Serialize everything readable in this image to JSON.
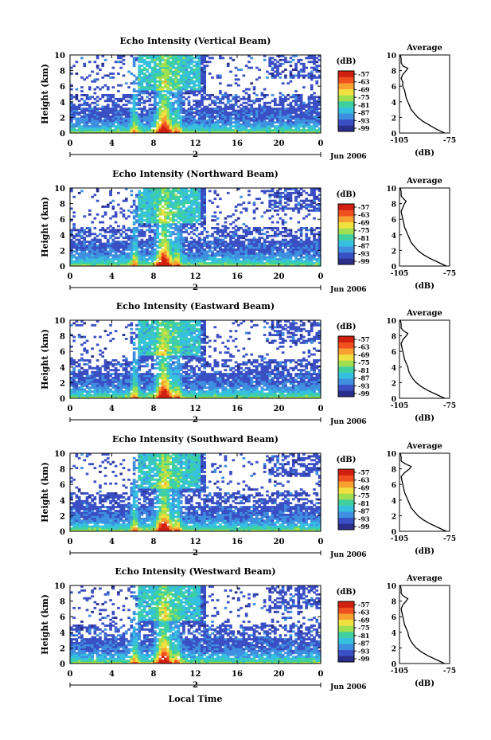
{
  "chart_data": [
    {
      "type": "heatmap",
      "title": "Echo Intensity (Vertical Beam)",
      "ylabel": "Height (km)",
      "xlim": [
        0,
        24
      ],
      "ylim": [
        0,
        10
      ],
      "x_ticks": [
        "0",
        "4",
        "8",
        "12",
        "16",
        "20",
        "0"
      ],
      "y_ticks": [
        "0",
        "2",
        "4",
        "6",
        "8",
        "10"
      ],
      "date_marker": "2",
      "date_label": "Jun 2006",
      "colorbar": {
        "label": "(dB)",
        "ticks": [
          "-57",
          "-63",
          "-69",
          "-75",
          "-81",
          "-87",
          "-93",
          "-99"
        ]
      },
      "profile": {
        "title": "Average",
        "xlabel": "(dB)",
        "xlim": [
          -105,
          -75
        ],
        "x_ticks": [
          "-105",
          "-75"
        ],
        "y_ticks": [
          "0",
          "2",
          "4",
          "6",
          "8",
          "10"
        ],
        "values": [
          [
            -78,
            0
          ],
          [
            -83,
            0.5
          ],
          [
            -87,
            1
          ],
          [
            -91,
            1.5
          ],
          [
            -94,
            2
          ],
          [
            -96,
            2.5
          ],
          [
            -98,
            3
          ],
          [
            -99,
            3.5
          ],
          [
            -100,
            4
          ],
          [
            -101,
            4.5
          ],
          [
            -101.5,
            5
          ],
          [
            -102,
            5.5
          ],
          [
            -103,
            6
          ],
          [
            -103,
            6.5
          ],
          [
            -104,
            7
          ],
          [
            -103,
            7.5
          ],
          [
            -101,
            8
          ],
          [
            -100,
            8.3
          ],
          [
            -103,
            8.6
          ],
          [
            -104,
            9
          ],
          [
            -104,
            9.5
          ],
          [
            -104.5,
            10
          ]
        ]
      }
    },
    {
      "type": "heatmap",
      "title": "Echo Intensity (Northward Beam)",
      "ylabel": "Height (km)",
      "xlim": [
        0,
        24
      ],
      "ylim": [
        0,
        10
      ],
      "x_ticks": [
        "0",
        "4",
        "8",
        "12",
        "16",
        "20",
        "0"
      ],
      "y_ticks": [
        "0",
        "2",
        "4",
        "6",
        "8",
        "10"
      ],
      "date_marker": "2",
      "date_label": "Jun 2006",
      "colorbar": {
        "label": "(dB)",
        "ticks": [
          "-57",
          "-63",
          "-69",
          "-75",
          "-81",
          "-87",
          "-93",
          "-99"
        ]
      },
      "profile": {
        "title": "Average",
        "xlabel": "(dB)",
        "xlim": [
          -105,
          -75
        ],
        "x_ticks": [
          "-105",
          "-75"
        ],
        "y_ticks": [
          "0",
          "2",
          "4",
          "6",
          "8",
          "10"
        ],
        "values": [
          [
            -77,
            0
          ],
          [
            -82,
            0.5
          ],
          [
            -87,
            1
          ],
          [
            -91,
            1.5
          ],
          [
            -94,
            2
          ],
          [
            -96,
            2.5
          ],
          [
            -98,
            3
          ],
          [
            -99,
            3.5
          ],
          [
            -100,
            4
          ],
          [
            -101,
            4.5
          ],
          [
            -102,
            5
          ],
          [
            -102.5,
            5.5
          ],
          [
            -103,
            6
          ],
          [
            -103.5,
            6.5
          ],
          [
            -104,
            7
          ],
          [
            -103,
            7.5
          ],
          [
            -102,
            8
          ],
          [
            -101,
            8.3
          ],
          [
            -103,
            8.7
          ],
          [
            -104,
            9
          ],
          [
            -104,
            9.5
          ],
          [
            -104.5,
            10
          ]
        ]
      }
    },
    {
      "type": "heatmap",
      "title": "Echo Intensity (Eastward Beam)",
      "ylabel": "Height (km)",
      "xlim": [
        0,
        24
      ],
      "ylim": [
        0,
        10
      ],
      "x_ticks": [
        "0",
        "4",
        "8",
        "12",
        "16",
        "20",
        "0"
      ],
      "y_ticks": [
        "0",
        "2",
        "4",
        "6",
        "8",
        "10"
      ],
      "date_marker": "2",
      "date_label": "Jun 2006",
      "colorbar": {
        "label": "(dB)",
        "ticks": [
          "-57",
          "-63",
          "-69",
          "-75",
          "-81",
          "-87",
          "-93",
          "-99"
        ]
      },
      "profile": {
        "title": "Average",
        "xlabel": "(dB)",
        "xlim": [
          -105,
          -75
        ],
        "x_ticks": [
          "-105",
          "-75"
        ],
        "y_ticks": [
          "0",
          "2",
          "4",
          "6",
          "8",
          "10"
        ],
        "values": [
          [
            -78,
            0
          ],
          [
            -83,
            0.5
          ],
          [
            -88,
            1
          ],
          [
            -92,
            1.5
          ],
          [
            -95,
            2
          ],
          [
            -97,
            2.5
          ],
          [
            -98.5,
            3
          ],
          [
            -99.5,
            3.5
          ],
          [
            -100,
            4
          ],
          [
            -101,
            4.5
          ],
          [
            -102,
            5
          ],
          [
            -102.5,
            5.5
          ],
          [
            -103,
            6
          ],
          [
            -103.5,
            6.5
          ],
          [
            -104,
            7
          ],
          [
            -103,
            7.5
          ],
          [
            -101,
            8
          ],
          [
            -100,
            8.3
          ],
          [
            -103,
            8.7
          ],
          [
            -104,
            9
          ],
          [
            -104,
            9.5
          ],
          [
            -104.5,
            10
          ]
        ]
      }
    },
    {
      "type": "heatmap",
      "title": "Echo Intensity (Southward Beam)",
      "ylabel": "Height (km)",
      "xlim": [
        0,
        24
      ],
      "ylim": [
        0,
        10
      ],
      "x_ticks": [
        "0",
        "4",
        "8",
        "12",
        "16",
        "20",
        "0"
      ],
      "y_ticks": [
        "0",
        "2",
        "4",
        "6",
        "8",
        "10"
      ],
      "date_marker": "2",
      "date_label": "Jun 2006",
      "colorbar": {
        "label": "(dB)",
        "ticks": [
          "-57",
          "-63",
          "-69",
          "-75",
          "-81",
          "-87",
          "-93",
          "-99"
        ]
      },
      "profile": {
        "title": "Average",
        "xlabel": "(dB)",
        "xlim": [
          -105,
          -75
        ],
        "x_ticks": [
          "-105",
          "-75"
        ],
        "y_ticks": [
          "0",
          "2",
          "4",
          "6",
          "8",
          "10"
        ],
        "values": [
          [
            -77,
            0
          ],
          [
            -82,
            0.5
          ],
          [
            -87,
            1
          ],
          [
            -91,
            1.5
          ],
          [
            -94,
            2
          ],
          [
            -96,
            2.5
          ],
          [
            -98,
            3
          ],
          [
            -99,
            3.5
          ],
          [
            -100,
            4
          ],
          [
            -101,
            4.5
          ],
          [
            -102,
            5
          ],
          [
            -102.5,
            5.5
          ],
          [
            -103,
            6
          ],
          [
            -103.5,
            6.5
          ],
          [
            -104,
            7
          ],
          [
            -102,
            7.5
          ],
          [
            -99,
            8
          ],
          [
            -98,
            8.3
          ],
          [
            -102,
            8.7
          ],
          [
            -104,
            9
          ],
          [
            -104,
            9.5
          ],
          [
            -104.5,
            10
          ]
        ]
      }
    },
    {
      "type": "heatmap",
      "title": "Echo Intensity (Westward Beam)",
      "ylabel": "Height (km)",
      "xlabel": "Local Time",
      "xlim": [
        0,
        24
      ],
      "ylim": [
        0,
        10
      ],
      "x_ticks": [
        "0",
        "4",
        "8",
        "12",
        "16",
        "20",
        "0"
      ],
      "y_ticks": [
        "0",
        "2",
        "4",
        "6",
        "8",
        "10"
      ],
      "date_marker": "2",
      "date_label": "Jun 2006",
      "colorbar": {
        "label": "(dB)",
        "ticks": [
          "-57",
          "-63",
          "-69",
          "-75",
          "-81",
          "-87",
          "-93",
          "-99"
        ]
      },
      "profile": {
        "title": "Average",
        "xlabel": "(dB)",
        "xlim": [
          -105,
          -75
        ],
        "x_ticks": [
          "-105",
          "-75"
        ],
        "y_ticks": [
          "0",
          "2",
          "4",
          "6",
          "8",
          "10"
        ],
        "values": [
          [
            -78,
            0
          ],
          [
            -83,
            0.5
          ],
          [
            -88,
            1
          ],
          [
            -92,
            1.5
          ],
          [
            -95,
            2
          ],
          [
            -97,
            2.5
          ],
          [
            -98.5,
            3
          ],
          [
            -99.5,
            3.5
          ],
          [
            -100,
            4
          ],
          [
            -101,
            4.5
          ],
          [
            -102,
            5
          ],
          [
            -102.5,
            5.5
          ],
          [
            -103,
            6
          ],
          [
            -103.5,
            6.5
          ],
          [
            -104,
            7
          ],
          [
            -103,
            7.5
          ],
          [
            -101,
            8
          ],
          [
            -100,
            8.3
          ],
          [
            -103,
            8.7
          ],
          [
            -104,
            9
          ],
          [
            -104,
            9.5
          ],
          [
            -104.5,
            10
          ]
        ]
      }
    }
  ],
  "colors": {
    "colormap": [
      "#2a2f8c",
      "#3a4fc4",
      "#3f8fe0",
      "#36c0e0",
      "#3fd0a0",
      "#a0e050",
      "#f0e040",
      "#f8a030",
      "#f05020",
      "#d02010"
    ]
  }
}
